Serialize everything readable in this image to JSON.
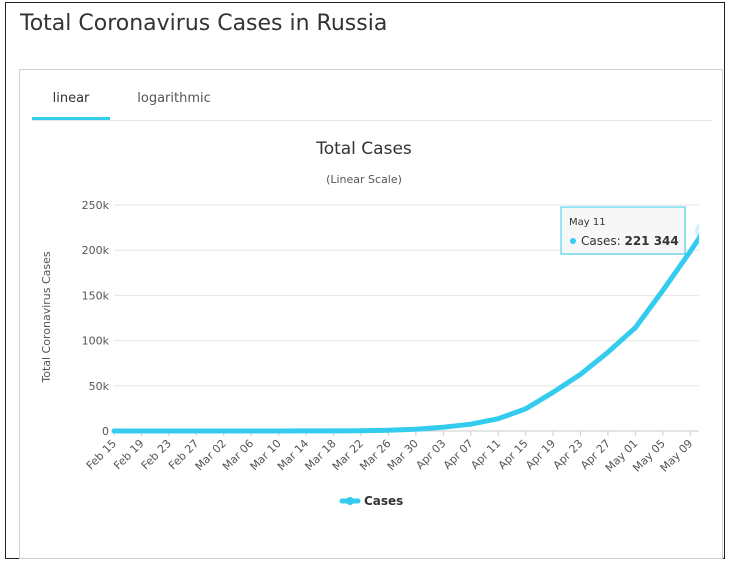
{
  "page": {
    "title": "Total Coronavirus Cases in Russia"
  },
  "tabs": [
    {
      "label": "linear",
      "active": true
    },
    {
      "label": "logarithmic",
      "active": false
    }
  ],
  "colors": {
    "series": "#33ccee",
    "accent": "#33ccee"
  },
  "chart_data": {
    "type": "line",
    "title": "Total Cases",
    "subtitle": "(Linear Scale)",
    "ylabel": "Total Coronavirus Cases",
    "ylim": [
      0,
      250000
    ],
    "yticks": [
      0,
      50000,
      100000,
      150000,
      200000,
      250000
    ],
    "ytick_labels": [
      "0",
      "50k",
      "100k",
      "150k",
      "200k",
      "250k"
    ],
    "xticks": [
      "Feb 15",
      "Feb 19",
      "Feb 23",
      "Feb 27",
      "Mar 02",
      "Mar 06",
      "Mar 10",
      "Mar 14",
      "Mar 18",
      "Mar 22",
      "Mar 26",
      "Mar 30",
      "Apr 03",
      "Apr 07",
      "Apr 11",
      "Apr 15",
      "Apr 19",
      "Apr 23",
      "Apr 27",
      "May 01",
      "May 05",
      "May 09"
    ],
    "grid": true,
    "legend_position": "bottom-center",
    "series": [
      {
        "name": "Cases",
        "x": [
          "Feb 15",
          "Feb 19",
          "Feb 23",
          "Feb 27",
          "Mar 02",
          "Mar 06",
          "Mar 10",
          "Mar 14",
          "Mar 18",
          "Mar 22",
          "Mar 26",
          "Mar 30",
          "Apr 03",
          "Apr 07",
          "Apr 11",
          "Apr 15",
          "Apr 19",
          "Apr 23",
          "Apr 27",
          "May 01",
          "May 05",
          "May 09",
          "May 11"
        ],
        "values": [
          2,
          2,
          2,
          2,
          3,
          4,
          10,
          59,
          147,
          367,
          840,
          1836,
          4149,
          7497,
          13584,
          24490,
          42853,
          62773,
          87147,
          114431,
          155370,
          198676,
          221344
        ]
      }
    ],
    "tooltip": {
      "date": "May 11",
      "series": "Cases",
      "value": "221 344"
    }
  }
}
